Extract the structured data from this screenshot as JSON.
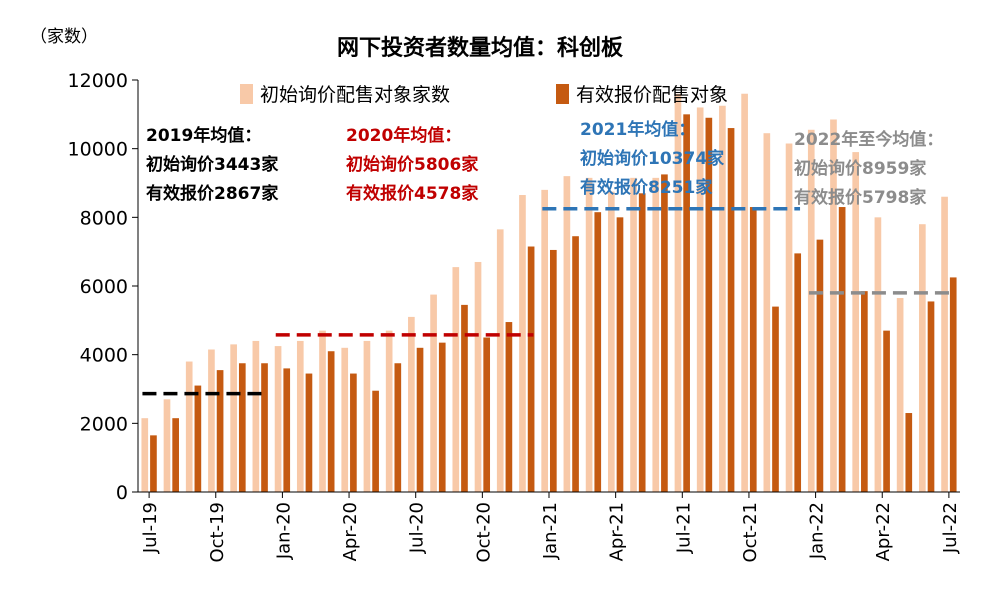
{
  "chart_data": {
    "type": "bar",
    "title": "网下投资者数量均值：科创板",
    "ylabel": "（家数）",
    "ylim": [
      0,
      12000
    ],
    "yticks": [
      0,
      2000,
      4000,
      6000,
      8000,
      10000,
      12000
    ],
    "categories": [
      "Jul-19",
      "Aug-19",
      "Sep-19",
      "Oct-19",
      "Nov-19",
      "Dec-19",
      "Jan-20",
      "Feb-20",
      "Mar-20",
      "Apr-20",
      "May-20",
      "Jun-20",
      "Jul-20",
      "Aug-20",
      "Sep-20",
      "Oct-20",
      "Nov-20",
      "Dec-20",
      "Jan-21",
      "Feb-21",
      "Mar-21",
      "Apr-21",
      "May-21",
      "Jun-21",
      "Jul-21",
      "Aug-21",
      "Sep-21",
      "Oct-21",
      "Nov-21",
      "Dec-21",
      "Jan-22",
      "Feb-22",
      "Mar-22",
      "Apr-22",
      "May-22",
      "Jun-22",
      "Jul-22"
    ],
    "xtick_labels": [
      "Jul-19",
      "Oct-19",
      "Jan-20",
      "Apr-20",
      "Jul-20",
      "Oct-20",
      "Jan-21",
      "Apr-21",
      "Jul-21",
      "Oct-21",
      "Jan-22",
      "Apr-22",
      "Jul-22"
    ],
    "series": [
      {
        "name": "初始询价配售对象家数",
        "color": "#F8C9A8",
        "values": [
          2150,
          2700,
          3800,
          4150,
          4300,
          4400,
          4250,
          4400,
          4700,
          4200,
          4400,
          4700,
          5100,
          5750,
          6550,
          6700,
          7650,
          8650,
          8800,
          9200,
          9150,
          8750,
          9150,
          9150,
          11600,
          11200,
          11250,
          11600,
          10450,
          10150,
          10550,
          10850,
          9900,
          8000,
          5650,
          7800,
          8600
        ]
      },
      {
        "name": "有效报价配售对象",
        "color": "#C55A11",
        "values": [
          1650,
          2150,
          3100,
          3550,
          3750,
          3750,
          3600,
          3450,
          4100,
          3450,
          2950,
          3750,
          4200,
          4350,
          5450,
          4500,
          4950,
          7150,
          7050,
          7450,
          8150,
          8000,
          8700,
          9250,
          11000,
          10900,
          10600,
          8300,
          5400,
          6950,
          7350,
          8300,
          5850,
          4700,
          2300,
          5550,
          6250
        ]
      }
    ],
    "averages": [
      {
        "label": "2019年均值",
        "initial": 3443,
        "effective": 2867,
        "color": "#000000",
        "start": "Jul-19",
        "end": "Dec-19"
      },
      {
        "label": "2020年均值",
        "initial": 5806,
        "effective": 4578,
        "color": "#C00000",
        "start": "Jan-20",
        "end": "Dec-20"
      },
      {
        "label": "2021年均值",
        "initial": 10374,
        "effective": 8251,
        "color": "#2E75B6",
        "start": "Jan-21",
        "end": "Dec-21"
      },
      {
        "label": "2022年至今均值",
        "initial": 8959,
        "effective": 5798,
        "color": "#8C8C8C",
        "start": "Jan-22",
        "end": "Jul-22"
      }
    ],
    "annotations": [
      {
        "lines": [
          "2019年均值：",
          "初始询价3443家",
          "有效报价2867家"
        ],
        "color": "#000000"
      },
      {
        "lines": [
          "2020年均值：",
          "初始询价5806家",
          "有效报价4578家"
        ],
        "color": "#C00000"
      },
      {
        "lines": [
          "2021年均值：",
          "初始询价10374家",
          "有效报价8251家"
        ],
        "color": "#2E75B6"
      },
      {
        "lines": [
          "2022年至今均值：",
          "初始询价8959家",
          "有效报价5798家"
        ],
        "color": "#8C8C8C"
      }
    ],
    "legend": "top"
  }
}
